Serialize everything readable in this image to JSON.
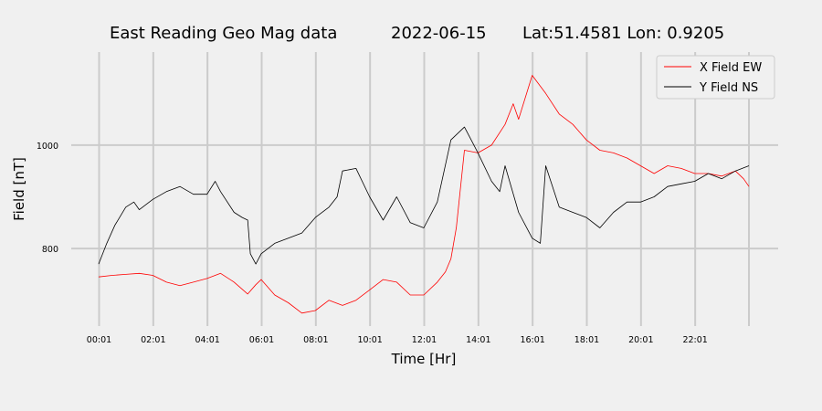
{
  "chart_data": {
    "type": "line",
    "title_parts": [
      "East Reading Geo Mag data",
      "2022-06-15",
      "Lat:51.4581  Lon: 0.9205"
    ],
    "xlabel": "Time  [Hr]",
    "ylabel": "Field  [nT]",
    "xlim": [
      0,
      24
    ],
    "ylim": [
      650,
      1180
    ],
    "x_ticks": [
      {
        "value": 0.0167,
        "label": "00:01"
      },
      {
        "value": 2.0167,
        "label": "02:01"
      },
      {
        "value": 4.0167,
        "label": "04:01"
      },
      {
        "value": 6.0167,
        "label": "06:01"
      },
      {
        "value": 8.0167,
        "label": "08:01"
      },
      {
        "value": 10.0167,
        "label": "10:01"
      },
      {
        "value": 12.0167,
        "label": "12:01"
      },
      {
        "value": 14.0167,
        "label": "14:01"
      },
      {
        "value": 16.0167,
        "label": "16:01"
      },
      {
        "value": 18.0167,
        "label": "18:01"
      },
      {
        "value": 20.0167,
        "label": "20:01"
      },
      {
        "value": 22.0167,
        "label": "22:01"
      }
    ],
    "x_gridlines": [
      0.0167,
      2.0167,
      4.0167,
      6.0167,
      8.0167,
      10.0167,
      12.0167,
      14.0167,
      16.0167,
      18.0167,
      20.0167,
      22.0167,
      24.0
    ],
    "y_ticks": [
      {
        "value": 800,
        "label": "800"
      },
      {
        "value": 1000,
        "label": "1000"
      }
    ],
    "grid": true,
    "legend_position": "top-right",
    "series": [
      {
        "name": "X Field EW",
        "color": "#ff0000",
        "x": [
          0.0,
          0.5,
          1.0,
          1.5,
          2.0,
          2.5,
          3.0,
          3.5,
          4.0,
          4.5,
          5.0,
          5.5,
          5.8,
          6.0,
          6.5,
          7.0,
          7.5,
          8.0,
          8.5,
          9.0,
          9.5,
          10.0,
          10.5,
          11.0,
          11.5,
          12.0,
          12.5,
          12.8,
          13.0,
          13.2,
          13.5,
          14.0,
          14.5,
          15.0,
          15.3,
          15.5,
          16.0,
          16.5,
          17.0,
          17.5,
          18.0,
          18.5,
          19.0,
          19.5,
          20.0,
          20.5,
          21.0,
          21.5,
          22.0,
          22.5,
          23.0,
          23.5,
          23.8,
          24.0
        ],
        "y": [
          745,
          748,
          750,
          752,
          748,
          735,
          728,
          735,
          742,
          752,
          735,
          712,
          730,
          740,
          710,
          695,
          675,
          680,
          700,
          690,
          700,
          720,
          740,
          735,
          710,
          710,
          735,
          755,
          780,
          840,
          990,
          985,
          1000,
          1040,
          1080,
          1050,
          1135,
          1100,
          1060,
          1040,
          1010,
          990,
          985,
          975,
          960,
          945,
          960,
          955,
          945,
          945,
          940,
          950,
          935,
          920
        ]
      },
      {
        "name": "Y Field NS",
        "color": "#000000",
        "x": [
          0.0,
          0.3,
          0.6,
          1.0,
          1.3,
          1.5,
          2.0,
          2.5,
          3.0,
          3.5,
          4.0,
          4.3,
          4.5,
          5.0,
          5.3,
          5.5,
          5.6,
          5.8,
          6.0,
          6.5,
          7.0,
          7.5,
          8.0,
          8.5,
          8.8,
          9.0,
          9.5,
          10.0,
          10.5,
          11.0,
          11.5,
          12.0,
          12.5,
          13.0,
          13.5,
          13.8,
          14.0,
          14.5,
          14.8,
          15.0,
          15.5,
          16.0,
          16.3,
          16.5,
          17.0,
          17.5,
          18.0,
          18.5,
          19.0,
          19.5,
          20.0,
          20.5,
          21.0,
          21.5,
          22.0,
          22.5,
          23.0,
          23.5,
          24.0
        ],
        "y": [
          770,
          810,
          845,
          880,
          890,
          875,
          895,
          910,
          920,
          905,
          905,
          930,
          910,
          870,
          860,
          855,
          790,
          770,
          790,
          810,
          820,
          830,
          860,
          880,
          900,
          950,
          955,
          900,
          855,
          900,
          850,
          840,
          890,
          1010,
          1035,
          1005,
          985,
          930,
          910,
          960,
          870,
          820,
          810,
          960,
          880,
          870,
          860,
          840,
          870,
          890,
          890,
          900,
          920,
          925,
          930,
          945,
          935,
          950,
          960
        ]
      }
    ]
  }
}
